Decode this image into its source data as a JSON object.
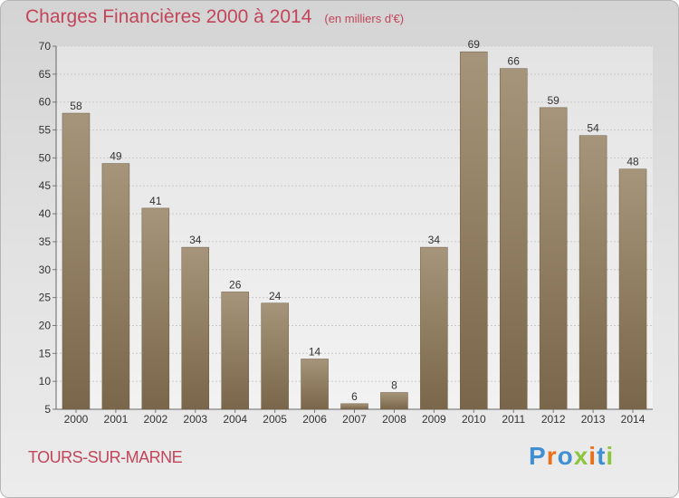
{
  "header": {
    "title": "Charges Financières 2000 à 2014",
    "subtitle": "(en milliers d'€)"
  },
  "footer": {
    "city": "TOURS-SUR-MARNE",
    "logo": [
      "P",
      "r",
      "o",
      "x",
      "i",
      "t",
      "i"
    ]
  },
  "colors": {
    "bar_top": "#a6957a",
    "bar_bottom": "#7a664a",
    "title": "#c2455a",
    "logo": [
      "#3f8fd2",
      "#e9711d",
      "#3f8fd2",
      "#8cc63f",
      "#e9711d",
      "#3f8fd2",
      "#8cc63f"
    ]
  },
  "chart_data": {
    "type": "bar",
    "title": "Charges Financières 2000 à 2014",
    "subtitle": "(en milliers d'€)",
    "categories": [
      "2000",
      "2001",
      "2002",
      "2003",
      "2004",
      "2005",
      "2006",
      "2007",
      "2008",
      "2009",
      "2010",
      "2011",
      "2012",
      "2013",
      "2014"
    ],
    "values": [
      58,
      49,
      41,
      34,
      26,
      24,
      14,
      6,
      8,
      34,
      69,
      66,
      59,
      54,
      48
    ],
    "ylim": [
      5,
      70
    ],
    "yticks": [
      5,
      10,
      15,
      20,
      25,
      30,
      35,
      40,
      45,
      50,
      55,
      60,
      65,
      70
    ],
    "grid": true,
    "legend": "none"
  }
}
